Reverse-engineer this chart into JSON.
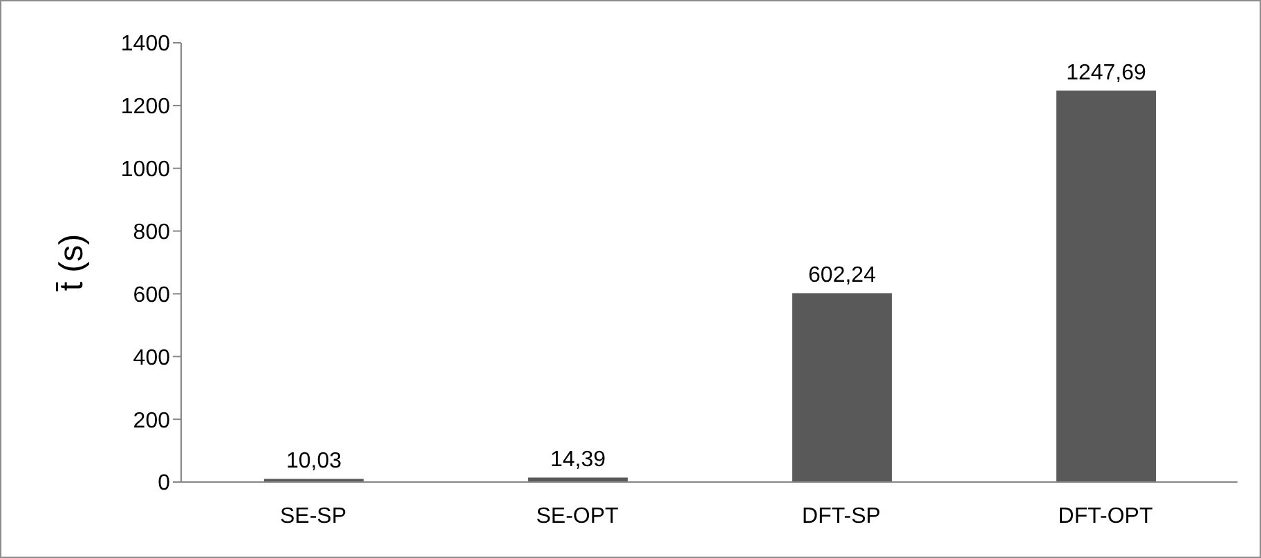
{
  "chart_data": {
    "type": "bar",
    "ylabel": "t̄ (s)",
    "categories": [
      "SE-SP",
      "SE-OPT",
      "DFT-SP",
      "DFT-OPT"
    ],
    "values": [
      10.03,
      14.39,
      602.24,
      1247.69
    ],
    "value_labels": [
      "10,03",
      "14,39",
      "602,24",
      "1247,69"
    ],
    "color": "#595959",
    "ylim": [
      0,
      1400
    ],
    "yticks": [
      0,
      200,
      400,
      600,
      800,
      1000,
      1200,
      1400
    ],
    "grid": false,
    "legend": false
  }
}
